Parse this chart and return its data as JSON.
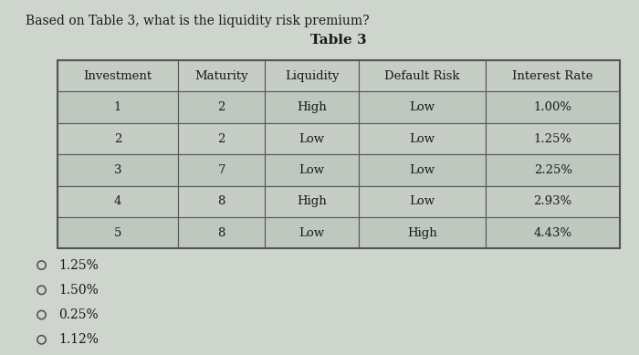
{
  "question": "Based on Table 3, what is the liquidity risk premium?",
  "table_title": "Table 3",
  "headers": [
    "Investment",
    "Maturity",
    "Liquidity",
    "Default Risk",
    "Interest Rate"
  ],
  "rows": [
    [
      "1",
      "2",
      "High",
      "Low",
      "1.00%"
    ],
    [
      "2",
      "2",
      "Low",
      "Low",
      "1.25%"
    ],
    [
      "3",
      "7",
      "Low",
      "Low",
      "2.25%"
    ],
    [
      "4",
      "8",
      "High",
      "Low",
      "2.93%"
    ],
    [
      "5",
      "8",
      "Low",
      "High",
      "4.43%"
    ]
  ],
  "options": [
    "1.25%",
    "1.50%",
    "0.25%",
    "1.12%"
  ],
  "bg_color": "#cdd5cd",
  "header_bg": "#c5cdc5",
  "row_bg_odd": "#bec8be",
  "row_bg_even": "#c5cdc5",
  "text_color": "#1a1a1a",
  "border_color": "#555555",
  "question_fontsize": 10,
  "table_title_fontsize": 11,
  "table_fontsize": 9.5,
  "option_fontsize": 10
}
